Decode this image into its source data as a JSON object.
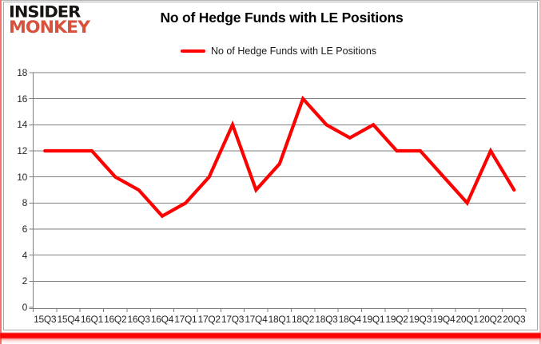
{
  "logo": {
    "line1": "INSIDER",
    "line2": "MONKEY"
  },
  "header": {
    "title": "No of Hedge Funds with LE Positions"
  },
  "legend": {
    "label": "No of Hedge Funds with LE Positions"
  },
  "colors": {
    "line": "#ff0000",
    "grid": "#7f7f7f",
    "axis": "#7f7f7f",
    "axis_text": "#262626",
    "title_text": "#000000",
    "logo_insider": "#161310",
    "logo_monkey": "#d7523c",
    "accent_bar": "#fb0505"
  },
  "chart_data": {
    "type": "line",
    "title": "No of Hedge Funds with LE Positions",
    "categories": [
      "15Q3",
      "15Q4",
      "16Q1",
      "16Q2",
      "16Q3",
      "16Q4",
      "17Q1",
      "17Q2",
      "17Q3",
      "17Q4",
      "18Q1",
      "18Q2",
      "18Q3",
      "18Q4",
      "19Q1",
      "19Q2",
      "19Q3",
      "19Q4",
      "20Q1",
      "20Q2",
      "20Q3"
    ],
    "series": [
      {
        "name": "No of Hedge Funds with LE Positions",
        "color": "#ff0000",
        "values": [
          12,
          12,
          12,
          10,
          9,
          7,
          8,
          10,
          14,
          9,
          11,
          16,
          14,
          13,
          14,
          12,
          12,
          10,
          8,
          12,
          9
        ]
      }
    ],
    "xlabel": "",
    "ylabel": "",
    "ylim": [
      0,
      18
    ],
    "ytick_step": 2,
    "grid": true,
    "legend_position": "top-center"
  }
}
